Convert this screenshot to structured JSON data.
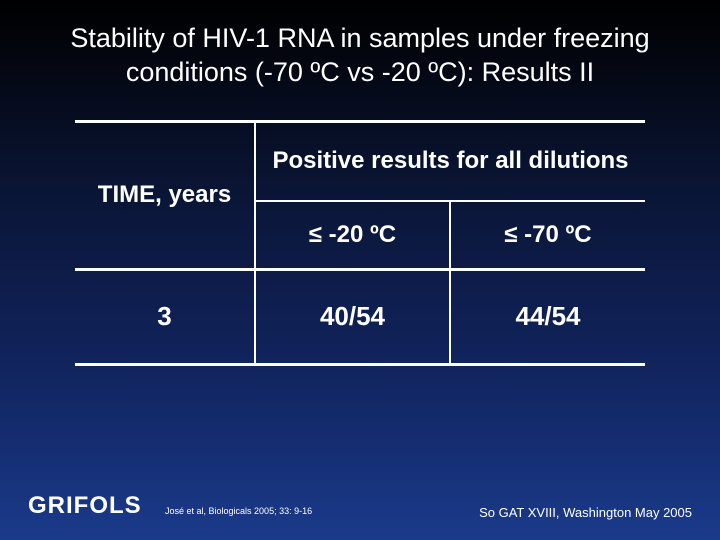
{
  "title": "Stability of HIV-1 RNA in samples under freezing conditions (-70 ºC vs -20 ºC): Results II",
  "table": {
    "time_header": "TIME, years",
    "positive_header": "Positive results for all dilutions",
    "col_minus20": "≤ -20 ºC",
    "col_minus70": "≤ -70 ºC",
    "row": {
      "time": "3",
      "v20": "40/54",
      "v70": "44/54"
    }
  },
  "footer": {
    "logo": "GRIFOLS",
    "citation": "José et al, Biologicals 2005; 33: 9-16",
    "conference": "So GAT XVIII, Washington  May 2005"
  },
  "style": {
    "bg_gradient": [
      "#000000",
      "#0a1535",
      "#10225a",
      "#1a3a8a"
    ],
    "text_color": "#ffffff",
    "rule_color": "#ffffff",
    "title_fontsize": 27,
    "table_fontsize": 24,
    "data_fontsize": 26,
    "citation_fontsize": 9,
    "conference_fontsize": 13,
    "logo_fontsize": 24
  }
}
